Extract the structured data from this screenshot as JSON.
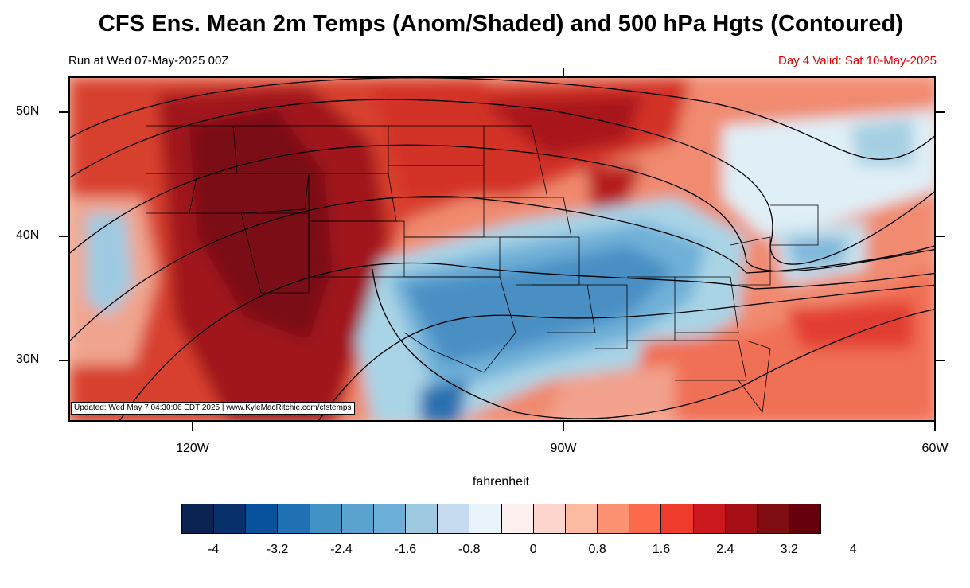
{
  "title": "CFS Ens. Mean 2m Temps (Anom/Shaded) and 500 hPa Hgts (Contoured)",
  "run_label": "Run at Wed 07-May-2025 00Z",
  "valid_label": "Day 4 Valid: Sat 10-May-2025",
  "stamp": "Updated: Wed May  7 04:30:06 EDT 2025 | www.KyleMacRitchie.com/cfstemps",
  "lat_labels": [
    "50N",
    "40N",
    "30N"
  ],
  "lon_labels": [
    "120W",
    "90W",
    "60W"
  ],
  "colorbar": {
    "unit_label": "fahrenheit",
    "tick_labels": [
      "-4",
      "-3.2",
      "-2.4",
      "-1.6",
      "-0.8",
      "0",
      "0.8",
      "1.6",
      "2.4",
      "3.2",
      "4"
    ],
    "colors": [
      "#0a2350",
      "#08306b",
      "#08519c",
      "#2171b5",
      "#4292c6",
      "#5aa2d0",
      "#6baed6",
      "#9ecae1",
      "#c6dbef",
      "#e8f4f9",
      "#fff0f0",
      "#fdd5cc",
      "#fcbba1",
      "#fc9272",
      "#fb6a4a",
      "#ef3b2c",
      "#cb181d",
      "#a50f15",
      "#800d12",
      "#67000d"
    ]
  },
  "colors": {
    "valid_text": "#e00000",
    "warm_anomaly": "#c9221e",
    "cool_anomaly": "#4b8fc6"
  }
}
